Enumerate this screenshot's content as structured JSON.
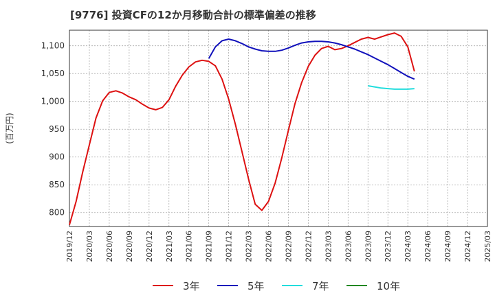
{
  "title": "[9776]  投資CFの12か月移動合計の標準偏差の推移",
  "chart_data": {
    "type": "line",
    "ylabel": "(百万円)",
    "xlabel": "",
    "ylim": [
      775,
      1128
    ],
    "yticks": [
      800,
      850,
      900,
      950,
      1000,
      1050,
      1100
    ],
    "ytick_labels": [
      "800",
      "850",
      "900",
      "950",
      "1,000",
      "1,050",
      "1,100"
    ],
    "xlim": [
      "2019-12",
      "2025-03"
    ],
    "xticks": [
      "2019/12",
      "2020/03",
      "2020/06",
      "2020/09",
      "2020/12",
      "2021/03",
      "2021/06",
      "2021/09",
      "2021/12",
      "2022/03",
      "2022/06",
      "2022/09",
      "2022/12",
      "2023/03",
      "2023/06",
      "2023/09",
      "2023/12",
      "2024/03",
      "2024/06",
      "2024/09",
      "2024/12",
      "2025/03"
    ],
    "grid": true,
    "legend_position": "bottom",
    "series": [
      {
        "name": "3年",
        "color": "#dd1111",
        "points": [
          [
            "2019-12",
            778
          ],
          [
            "2020-01",
            820
          ],
          [
            "2020-02",
            873
          ],
          [
            "2020-03",
            922
          ],
          [
            "2020-04",
            970
          ],
          [
            "2020-05",
            1001
          ],
          [
            "2020-06",
            1016
          ],
          [
            "2020-07",
            1019
          ],
          [
            "2020-08",
            1015
          ],
          [
            "2020-09",
            1008
          ],
          [
            "2020-10",
            1003
          ],
          [
            "2020-11",
            995
          ],
          [
            "2020-12",
            988
          ],
          [
            "2021-01",
            985
          ],
          [
            "2021-02",
            989
          ],
          [
            "2021-03",
            1003
          ],
          [
            "2021-04",
            1027
          ],
          [
            "2021-05",
            1047
          ],
          [
            "2021-06",
            1062
          ],
          [
            "2021-07",
            1071
          ],
          [
            "2021-08",
            1074
          ],
          [
            "2021-09",
            1072
          ],
          [
            "2021-10",
            1064
          ],
          [
            "2021-11",
            1040
          ],
          [
            "2021-12",
            1004
          ],
          [
            "2022-01",
            959
          ],
          [
            "2022-02",
            910
          ],
          [
            "2022-03",
            860
          ],
          [
            "2022-04",
            815
          ],
          [
            "2022-05",
            804
          ],
          [
            "2022-06",
            820
          ],
          [
            "2022-07",
            853
          ],
          [
            "2022-08",
            898
          ],
          [
            "2022-09",
            948
          ],
          [
            "2022-10",
            996
          ],
          [
            "2022-11",
            1034
          ],
          [
            "2022-12",
            1063
          ],
          [
            "2023-01",
            1083
          ],
          [
            "2023-02",
            1095
          ],
          [
            "2023-03",
            1099
          ],
          [
            "2023-04",
            1093
          ],
          [
            "2023-05",
            1095
          ],
          [
            "2023-06",
            1100
          ],
          [
            "2023-07",
            1106
          ],
          [
            "2023-08",
            1112
          ],
          [
            "2023-09",
            1115
          ],
          [
            "2023-10",
            1112
          ],
          [
            "2023-11",
            1116
          ],
          [
            "2023-12",
            1120
          ],
          [
            "2024-01",
            1123
          ],
          [
            "2024-02",
            1117
          ],
          [
            "2024-03",
            1098
          ],
          [
            "2024-04",
            1054
          ]
        ]
      },
      {
        "name": "5年",
        "color": "#1111bb",
        "points": [
          [
            "2021-09",
            1077
          ],
          [
            "2021-10",
            1098
          ],
          [
            "2021-11",
            1109
          ],
          [
            "2021-12",
            1112
          ],
          [
            "2022-01",
            1109
          ],
          [
            "2022-02",
            1104
          ],
          [
            "2022-03",
            1098
          ],
          [
            "2022-04",
            1094
          ],
          [
            "2022-05",
            1091
          ],
          [
            "2022-06",
            1090
          ],
          [
            "2022-07",
            1090
          ],
          [
            "2022-08",
            1092
          ],
          [
            "2022-09",
            1096
          ],
          [
            "2022-10",
            1101
          ],
          [
            "2022-11",
            1105
          ],
          [
            "2022-12",
            1107
          ],
          [
            "2023-01",
            1108
          ],
          [
            "2023-02",
            1108
          ],
          [
            "2023-03",
            1107
          ],
          [
            "2023-04",
            1105
          ],
          [
            "2023-05",
            1102
          ],
          [
            "2023-06",
            1098
          ],
          [
            "2023-07",
            1094
          ],
          [
            "2023-08",
            1089
          ],
          [
            "2023-09",
            1084
          ],
          [
            "2023-10",
            1078
          ],
          [
            "2023-11",
            1072
          ],
          [
            "2023-12",
            1066
          ],
          [
            "2024-01",
            1059
          ],
          [
            "2024-02",
            1052
          ],
          [
            "2024-03",
            1045
          ],
          [
            "2024-04",
            1040
          ]
        ]
      },
      {
        "name": "7年",
        "color": "#22dddd",
        "points": [
          [
            "2023-09",
            1028
          ],
          [
            "2023-10",
            1026
          ],
          [
            "2023-11",
            1024
          ],
          [
            "2023-12",
            1023
          ],
          [
            "2024-01",
            1022
          ],
          [
            "2024-02",
            1022
          ],
          [
            "2024-03",
            1022
          ],
          [
            "2024-04",
            1023
          ]
        ]
      },
      {
        "name": "10年",
        "color": "#228822",
        "points": []
      }
    ]
  }
}
